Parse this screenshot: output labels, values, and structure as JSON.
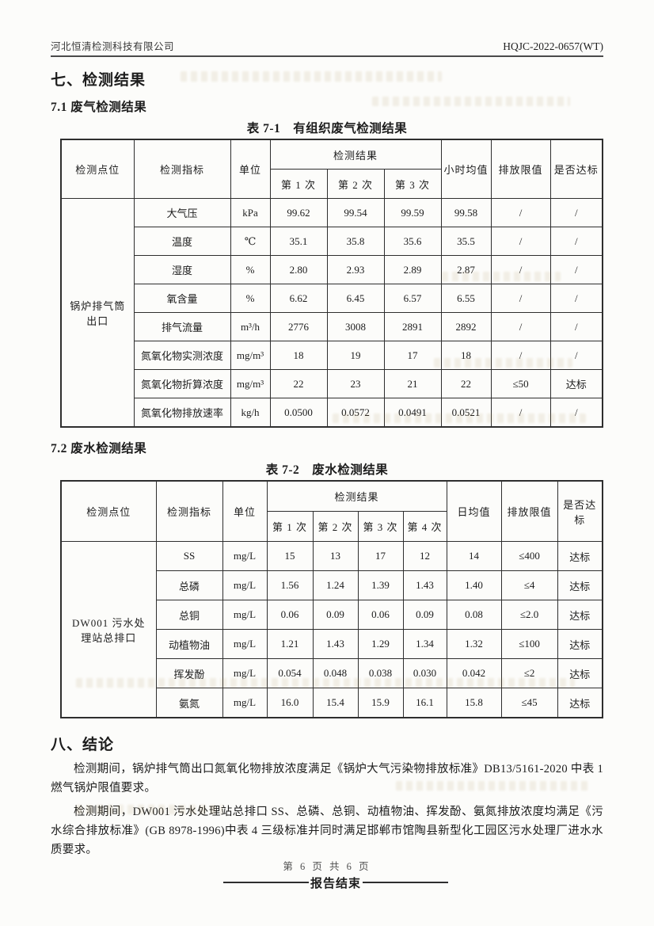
{
  "header": {
    "company": "河北恒清检测科技有限公司",
    "doc_no": "HQJC-2022-0657(WT)"
  },
  "sections": {
    "results_heading": "七、检测结果",
    "waste_gas_heading": "7.1 废气检测结果",
    "waste_water_heading": "7.2 废水检测结果",
    "conclusion_heading": "八、结论",
    "conclusion_para1": "检测期间，锅炉排气筒出口氮氧化物排放浓度满足《锅炉大气污染物排放标准》DB13/5161-2020 中表 1 燃气锅炉限值要求。",
    "conclusion_para2": "检测期间，DW001 污水处理站总排口 SS、总磷、总铜、动植物油、挥发酚、氨氮排放浓度均满足《污水综合排放标准》(GB 8978-1996)中表 4 三级标准并同时满足邯郸市馆陶县新型化工园区污水处理厂进水水质要求。",
    "report_end": "报告结束"
  },
  "table1": {
    "caption": "表 7-1　有组织废气检测结果",
    "headers": {
      "point": "检测点位",
      "indicator": "检测指标",
      "unit": "单位",
      "result_group": "检测结果",
      "runs": [
        "第 1 次",
        "第 2 次",
        "第 3 次"
      ],
      "avg": "小时均值",
      "limit": "排放限值",
      "pass": "是否达标"
    },
    "point_label": "锅炉排气筒出口",
    "rows": [
      {
        "indicator": "大气压",
        "unit": "kPa",
        "values": [
          "99.62",
          "99.54",
          "99.59"
        ],
        "avg": "99.58",
        "limit": "/",
        "pass": "/"
      },
      {
        "indicator": "温度",
        "unit": "℃",
        "values": [
          "35.1",
          "35.8",
          "35.6"
        ],
        "avg": "35.5",
        "limit": "/",
        "pass": "/"
      },
      {
        "indicator": "湿度",
        "unit": "%",
        "values": [
          "2.80",
          "2.93",
          "2.89"
        ],
        "avg": "2.87",
        "limit": "/",
        "pass": "/"
      },
      {
        "indicator": "氧含量",
        "unit": "%",
        "values": [
          "6.62",
          "6.45",
          "6.57"
        ],
        "avg": "6.55",
        "limit": "/",
        "pass": "/"
      },
      {
        "indicator": "排气流量",
        "unit": "m³/h",
        "values": [
          "2776",
          "3008",
          "2891"
        ],
        "avg": "2892",
        "limit": "/",
        "pass": "/"
      },
      {
        "indicator": "氮氧化物实测浓度",
        "unit": "mg/m³",
        "values": [
          "18",
          "19",
          "17"
        ],
        "avg": "18",
        "limit": "/",
        "pass": "/"
      },
      {
        "indicator": "氮氧化物折算浓度",
        "unit": "mg/m³",
        "values": [
          "22",
          "23",
          "21"
        ],
        "avg": "22",
        "limit": "≤50",
        "pass": "达标"
      },
      {
        "indicator": "氮氧化物排放速率",
        "unit": "kg/h",
        "values": [
          "0.0500",
          "0.0572",
          "0.0491"
        ],
        "avg": "0.0521",
        "limit": "/",
        "pass": "/"
      }
    ]
  },
  "table2": {
    "caption": "表 7-2　废水检测结果",
    "headers": {
      "point": "检测点位",
      "indicator": "检测指标",
      "unit": "单位",
      "result_group": "检测结果",
      "runs": [
        "第 1 次",
        "第 2 次",
        "第 3 次",
        "第 4 次"
      ],
      "avg": "日均值",
      "limit": "排放限值",
      "pass": "是否达标"
    },
    "point_label": "DW001 污水处理站总排口",
    "rows": [
      {
        "indicator": "SS",
        "unit": "mg/L",
        "values": [
          "15",
          "13",
          "17",
          "12"
        ],
        "avg": "14",
        "limit": "≤400",
        "pass": "达标"
      },
      {
        "indicator": "总磷",
        "unit": "mg/L",
        "values": [
          "1.56",
          "1.24",
          "1.39",
          "1.43"
        ],
        "avg": "1.40",
        "limit": "≤4",
        "pass": "达标"
      },
      {
        "indicator": "总铜",
        "unit": "mg/L",
        "values": [
          "0.06",
          "0.09",
          "0.06",
          "0.09"
        ],
        "avg": "0.08",
        "limit": "≤2.0",
        "pass": "达标"
      },
      {
        "indicator": "动植物油",
        "unit": "mg/L",
        "values": [
          "1.21",
          "1.43",
          "1.29",
          "1.34"
        ],
        "avg": "1.32",
        "limit": "≤100",
        "pass": "达标"
      },
      {
        "indicator": "挥发酚",
        "unit": "mg/L",
        "values": [
          "0.054",
          "0.048",
          "0.038",
          "0.030"
        ],
        "avg": "0.042",
        "limit": "≤2",
        "pass": "达标"
      },
      {
        "indicator": "氨氮",
        "unit": "mg/L",
        "values": [
          "16.0",
          "15.4",
          "15.9",
          "16.1"
        ],
        "avg": "15.8",
        "limit": "≤45",
        "pass": "达标"
      }
    ]
  },
  "footer": {
    "page_text": "第 6 页 共 6 页"
  }
}
